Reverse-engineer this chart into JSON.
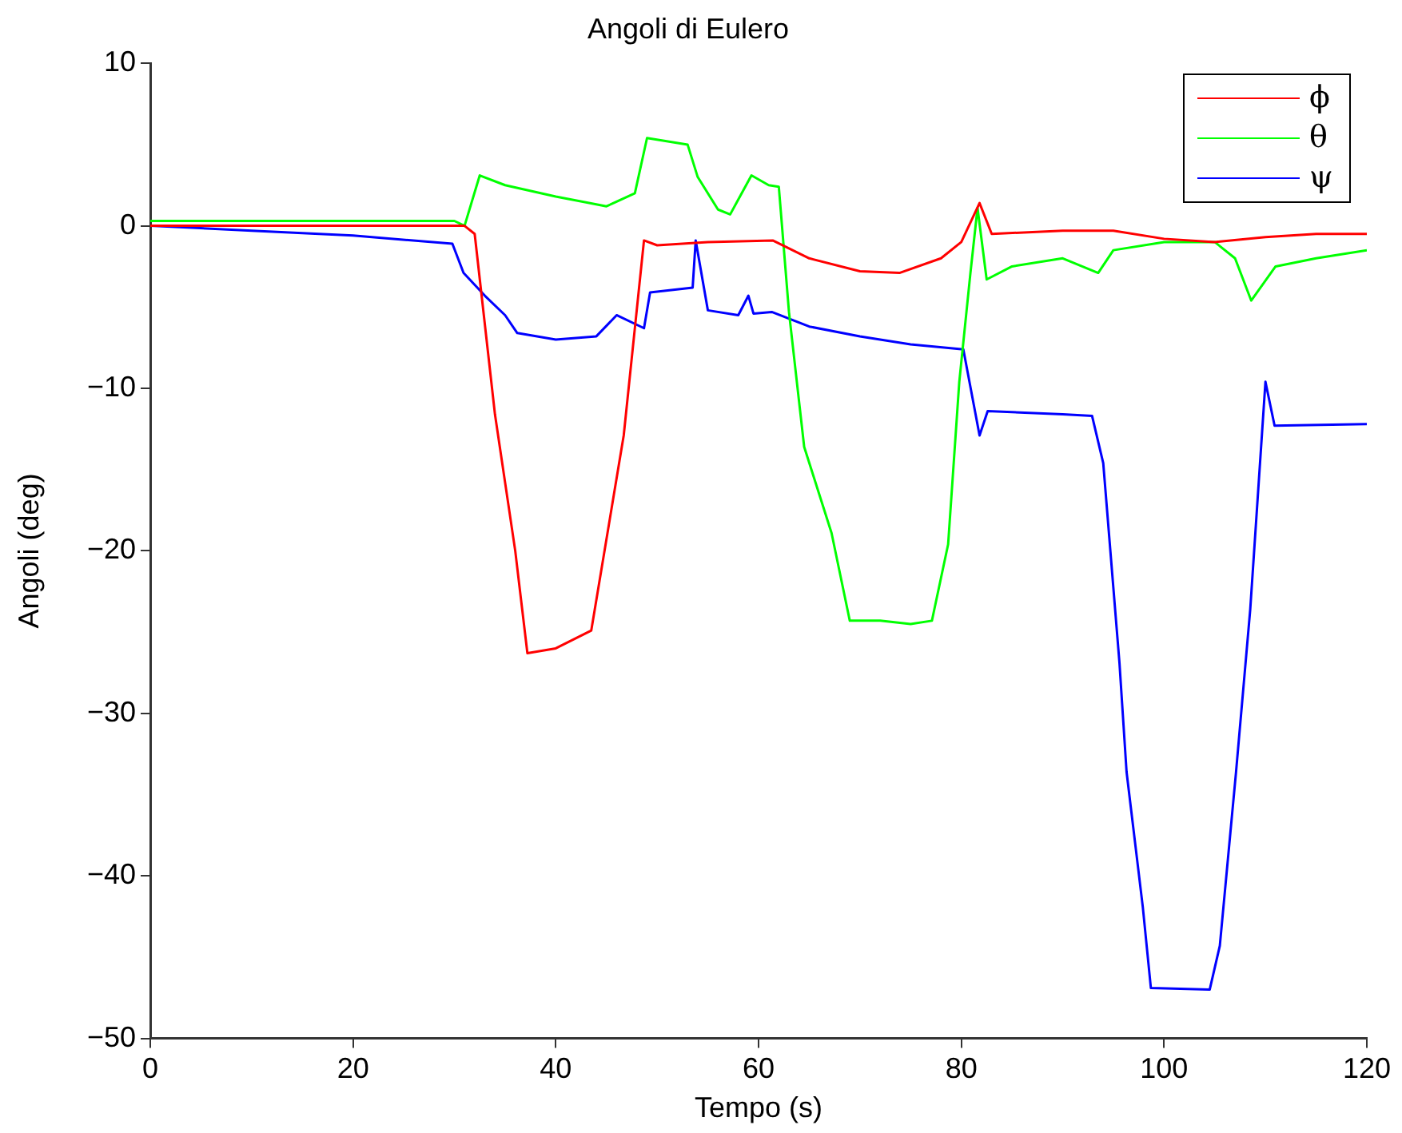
{
  "chart_data": {
    "type": "line",
    "title": "Angoli di Eulero",
    "xlabel": "Tempo (s)",
    "ylabel": "Angoli (deg)",
    "xlim": [
      0,
      120
    ],
    "xticks": [
      0,
      20,
      40,
      60,
      80,
      100,
      120
    ],
    "ylim": [
      -50,
      10
    ],
    "yticks": [
      -50,
      -40,
      -30,
      -20,
      -10,
      0,
      10
    ],
    "grid": false,
    "legend": "top right",
    "marker": "none",
    "line_style": "solid",
    "series": [
      {
        "name": "ϕ",
        "color": "#ff0000",
        "x": [
          0,
          10,
          20,
          30,
          31,
          32,
          34,
          36,
          37.2,
          40,
          43.5,
          46.7,
          48.7,
          50,
          55,
          61.4,
          65,
          70,
          73.9,
          78,
          80,
          81.8,
          83,
          90,
          95,
          100,
          105,
          110,
          115,
          120
        ],
        "values": [
          0,
          0,
          0,
          0,
          0,
          -0.5,
          -11.6,
          -20,
          -26.3,
          -26,
          -24.9,
          -12.9,
          -0.9,
          -1.2,
          -1,
          -0.9,
          -2,
          -2.8,
          -2.9,
          -2,
          -1,
          1.4,
          -0.5,
          -0.3,
          -0.3,
          -0.8,
          -1,
          -0.7,
          -0.5,
          -0.5
        ]
      },
      {
        "name": "θ",
        "color": "#00ff00",
        "x": [
          0,
          10,
          20,
          30,
          31,
          32.5,
          35,
          40,
          45,
          47.8,
          49,
          53,
          54,
          56,
          57.2,
          59.3,
          61,
          62,
          63,
          64.5,
          67.2,
          69,
          72,
          75,
          77.1,
          78.7,
          79.8,
          80.9,
          81.6,
          82.5,
          85,
          90,
          93.5,
          95,
          100,
          105,
          107,
          108.6,
          111,
          115,
          120
        ],
        "values": [
          0.3,
          0.3,
          0.3,
          0.3,
          0,
          3.1,
          2.5,
          1.8,
          1.2,
          2,
          5.4,
          5,
          3,
          1,
          0.7,
          3.1,
          2.5,
          2.4,
          -5.3,
          -13.6,
          -18.9,
          -24.3,
          -24.3,
          -24.5,
          -24.3,
          -19.6,
          -9.6,
          -2.9,
          1.1,
          -3.3,
          -2.5,
          -2,
          -2.9,
          -1.5,
          -1,
          -1,
          -2,
          -4.6,
          -2.5,
          -2,
          -1.5
        ]
      },
      {
        "name": "ψ",
        "color": "#0000ff",
        "x": [
          0,
          10,
          20,
          29.8,
          30.9,
          33,
          35,
          36.2,
          40,
          44,
          46,
          48.7,
          49.3,
          53.5,
          53.8,
          55,
          58,
          59,
          59.5,
          61.3,
          65,
          70,
          75,
          80.2,
          81.8,
          82.6,
          90,
          92.9,
          94,
          95.6,
          96.3,
          97.9,
          98.7,
          104.5,
          105.5,
          107.1,
          108.5,
          110,
          110.9,
          120
        ],
        "values": [
          0,
          -0.3,
          -0.6,
          -1.1,
          -2.9,
          -4.3,
          -5.5,
          -6.6,
          -7,
          -6.8,
          -5.5,
          -6.3,
          -4.1,
          -3.8,
          -0.9,
          -5.2,
          -5.5,
          -4.3,
          -5.4,
          -5.3,
          -6.2,
          -6.8,
          -7.3,
          -7.6,
          -12.9,
          -11.4,
          -11.6,
          -11.7,
          -14.6,
          -26.9,
          -33.6,
          -41.9,
          -46.9,
          -47,
          -44.3,
          -33.6,
          -23.6,
          -9.6,
          -12.3,
          -12.2
        ]
      }
    ]
  }
}
